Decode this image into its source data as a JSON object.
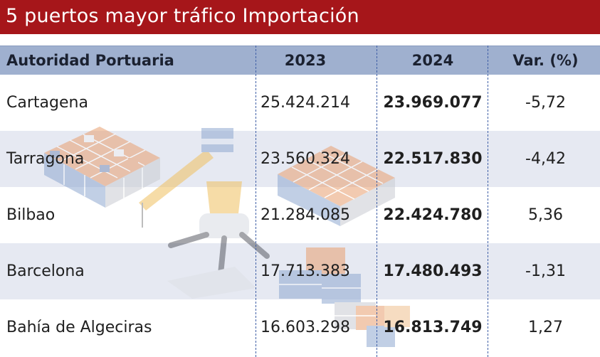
{
  "title": "5 puertos mayor tráfico Importación",
  "columns": {
    "name": "Autoridad Portuaria",
    "y2023": "2023",
    "y2024": "2024",
    "var": "Var. (%)"
  },
  "rows": [
    {
      "name": "Cartagena",
      "y2023": "25.424.214",
      "y2024": "23.969.077",
      "var": "-5,72"
    },
    {
      "name": "Tarragona",
      "y2023": "23.560.324",
      "y2024": "22.517.830",
      "var": "-4,42"
    },
    {
      "name": "Bilbao",
      "y2023": "21.284.085",
      "y2024": "22.424.780",
      "var": "5,36"
    },
    {
      "name": "Barcelona",
      "y2023": "17.713.383",
      "y2024": "17.480.493",
      "var": "-1,31"
    },
    {
      "name": "Bahía de Algeciras",
      "y2023": "16.603.298",
      "y2024": "16.813.749",
      "var": "1,27"
    }
  ],
  "chart_data": {
    "type": "table",
    "title": "5 puertos mayor tráfico Importación",
    "columns": [
      "Autoridad Portuaria",
      "2023",
      "2024",
      "Var. (%)"
    ],
    "rows": [
      [
        "Cartagena",
        25424214,
        23969077,
        -5.72
      ],
      [
        "Tarragona",
        23560324,
        22517830,
        -4.42
      ],
      [
        "Bilbao",
        21284085,
        22424780,
        5.36
      ],
      [
        "Barcelona",
        17713383,
        17480493,
        -1.31
      ],
      [
        "Bahía de Algeciras",
        16603298,
        16813749,
        1.27
      ]
    ]
  },
  "colors": {
    "title_bar": "#a6161a",
    "header": "#9fb0cf",
    "row_shade": "#e6e9f2",
    "divider": "#3f5fa6",
    "container_orange": "#e8a070",
    "container_blue": "#8fa9d0",
    "container_grey": "#c9ccd2",
    "crane_yellow": "#f0c060"
  },
  "illustration": {
    "icons": [
      "container-stack-icon",
      "crane-icon",
      "container-pile-icon"
    ]
  }
}
